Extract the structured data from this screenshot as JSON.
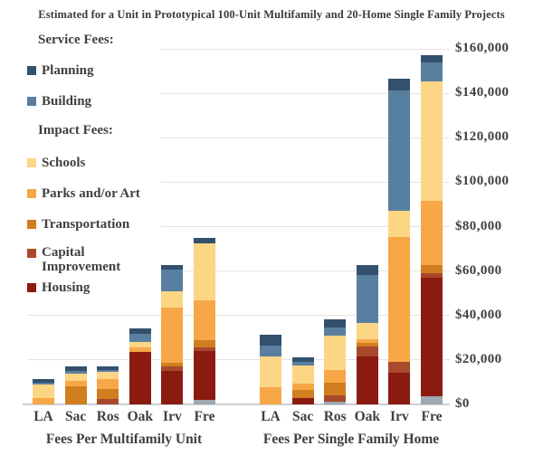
{
  "colors": {
    "planning": "#33506C",
    "building": "#587FA0",
    "schools": "#FCD585",
    "parks": "#F8A746",
    "transportation": "#D07E1F",
    "capital_improvement": "#A9492C",
    "housing": "#8B1B11",
    "other": "#9EA8B1",
    "gridline": "#E4E4E4",
    "axis": "#C9CED2",
    "text": "#3F3F3F"
  },
  "legend": {
    "service_header": "Service Fees:",
    "impact_header": "Impact Fees:",
    "service_items": [
      {
        "key": "planning",
        "label": "Planning"
      },
      {
        "key": "building",
        "label": "Building"
      }
    ],
    "impact_items": [
      {
        "key": "schools",
        "label": "Schools"
      },
      {
        "key": "parks",
        "label": "Parks and/or Art"
      },
      {
        "key": "transportation",
        "label": "Transportation"
      },
      {
        "key": "capital_improvement",
        "label": "Capital Improvement"
      },
      {
        "key": "housing",
        "label": "Housing"
      }
    ]
  },
  "chart_data": {
    "type": "bar",
    "stacked": true,
    "title": "Estimated for a Unit in Prototypical 100-Unit Multifamily and 20-Home Single Family Projects",
    "xlabel": "",
    "ylabel": "",
    "ymax": 160000,
    "ytick_interval": 20000,
    "ytick_labels": [
      "$0",
      "$20,000",
      "$40,000",
      "$60,000",
      "$80,000",
      "$100,000",
      "$120,000",
      "$140,000",
      "$160,000"
    ],
    "grid": true,
    "legend_position": "upper-left",
    "yaxis_labels_position": "right",
    "stack_order_bottom_to_top": [
      "other",
      "housing",
      "capital_improvement",
      "transportation",
      "parks",
      "schools",
      "building",
      "planning"
    ],
    "series_labels": {
      "planning": "Planning",
      "building": "Building",
      "schools": "Schools",
      "parks": "Parks and/or Art",
      "transportation": "Transportation",
      "capital_improvement": "Capital Improvement",
      "housing": "Housing",
      "other": ""
    },
    "groups": [
      {
        "label": "Fees Per Multifamily Unit",
        "categories": [
          "LA",
          "Sac",
          "Ros",
          "Oak",
          "Irv",
          "Fre"
        ],
        "totals": [
          11200,
          16900,
          17100,
          34200,
          62800,
          75000
        ],
        "series": {
          "planning": [
            1400,
            1900,
            1800,
            2600,
            2000,
            2400
          ],
          "building": [
            700,
            1200,
            800,
            3500,
            9800,
            0
          ],
          "schools": [
            6300,
            3300,
            3300,
            2300,
            7500,
            25900
          ],
          "parks": [
            2800,
            2400,
            4300,
            2300,
            24800,
            17900
          ],
          "transportation": [
            0,
            8100,
            4500,
            0,
            1500,
            3100
          ],
          "capital_improvement": [
            0,
            0,
            2400,
            0,
            2000,
            1800
          ],
          "housing": [
            0,
            0,
            0,
            23500,
            15200,
            22000
          ],
          "other": [
            0,
            0,
            0,
            0,
            0,
            1900
          ]
        }
      },
      {
        "label": "Fees Per Single Family Home",
        "categories": [
          "LA",
          "Sac",
          "Ros",
          "Oak",
          "Irv",
          "Fre"
        ],
        "totals": [
          31500,
          21100,
          38300,
          62600,
          146400,
          157100
        ],
        "series": {
          "planning": [
            5100,
            1900,
            3700,
            4300,
            5000,
            3400
          ],
          "building": [
            4700,
            1800,
            3700,
            21700,
            54300,
            8200
          ],
          "schools": [
            14000,
            8200,
            15300,
            7400,
            11700,
            53800
          ],
          "parks": [
            7700,
            2600,
            5700,
            1400,
            56400,
            29200
          ],
          "transportation": [
            0,
            3700,
            5900,
            1800,
            0,
            3400
          ],
          "capital_improvement": [
            0,
            0,
            2700,
            4300,
            4800,
            2000
          ],
          "housing": [
            0,
            2900,
            0,
            21700,
            14200,
            53600
          ],
          "other": [
            0,
            0,
            1300,
            0,
            0,
            3500
          ]
        }
      }
    ]
  }
}
